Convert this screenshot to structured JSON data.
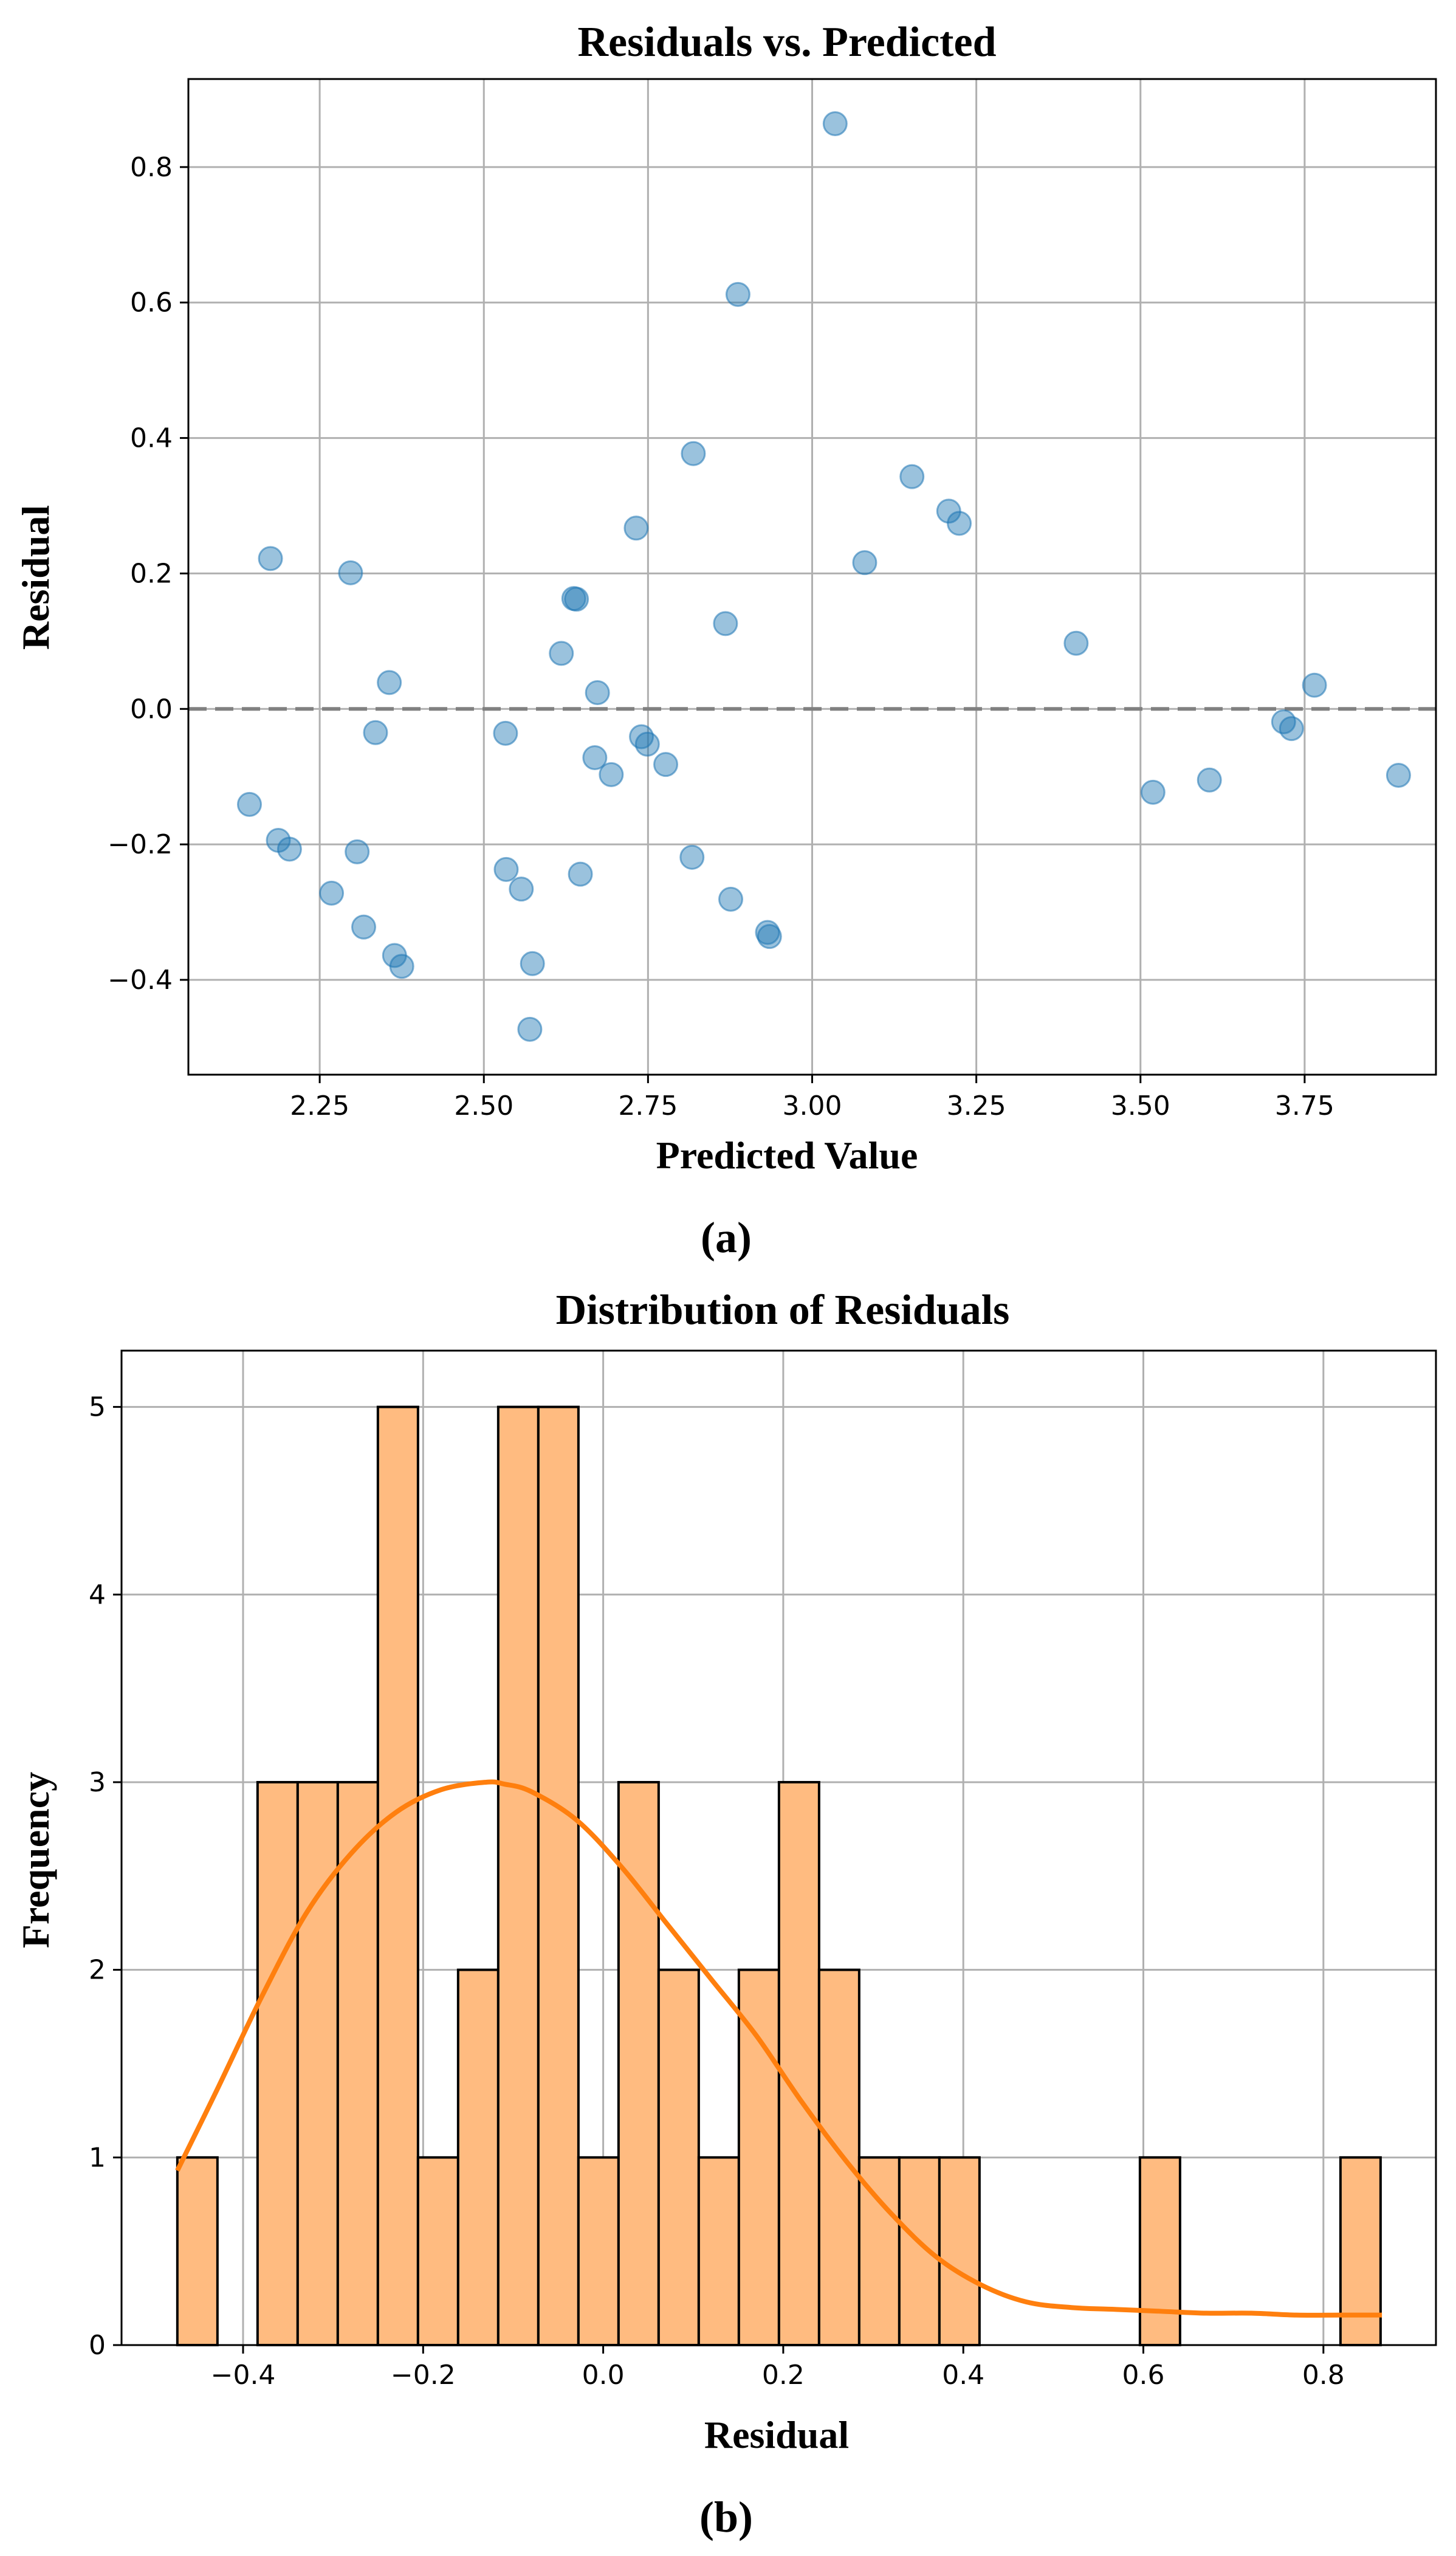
{
  "chart_data": [
    {
      "type": "scatter",
      "title": "Residuals vs. Predicted",
      "xlabel": "Predicted Value",
      "ylabel": "Residual",
      "panel_label": "(a)",
      "xlim": [
        2.05,
        3.95
      ],
      "ylim": [
        -0.54,
        0.93
      ],
      "xticks": [
        "2.25",
        "2.50",
        "2.75",
        "3.00",
        "3.25",
        "3.50",
        "3.75"
      ],
      "xtick_values": [
        2.25,
        2.5,
        2.75,
        3.0,
        3.25,
        3.5,
        3.75
      ],
      "yticks": [
        "−0.4",
        "−0.2",
        "0.0",
        "0.2",
        "0.4",
        "0.6",
        "0.8"
      ],
      "ytick_values": [
        -0.4,
        -0.2,
        0.0,
        0.2,
        0.4,
        0.6,
        0.8
      ],
      "grid": true,
      "reference_line": {
        "y": 0.0,
        "style": "dashed"
      },
      "marker_color": "#1f77b4",
      "points": [
        [
          2.143,
          -0.141
        ],
        [
          2.175,
          0.222
        ],
        [
          2.187,
          -0.194
        ],
        [
          2.204,
          -0.207
        ],
        [
          2.268,
          -0.272
        ],
        [
          2.297,
          0.201
        ],
        [
          2.307,
          -0.211
        ],
        [
          2.317,
          -0.322
        ],
        [
          2.335,
          -0.035
        ],
        [
          2.356,
          0.039
        ],
        [
          2.364,
          -0.364
        ],
        [
          2.375,
          -0.38
        ],
        [
          2.533,
          -0.036
        ],
        [
          2.534,
          -0.237
        ],
        [
          2.557,
          -0.266
        ],
        [
          2.57,
          -0.473
        ],
        [
          2.574,
          -0.376
        ],
        [
          2.618,
          0.082
        ],
        [
          2.637,
          0.163
        ],
        [
          2.641,
          0.162
        ],
        [
          2.647,
          -0.244
        ],
        [
          2.669,
          -0.072
        ],
        [
          2.673,
          0.024
        ],
        [
          2.694,
          -0.097
        ],
        [
          2.732,
          0.267
        ],
        [
          2.74,
          -0.041
        ],
        [
          2.749,
          -0.052
        ],
        [
          2.777,
          -0.082
        ],
        [
          2.817,
          -0.219
        ],
        [
          2.819,
          0.377
        ],
        [
          2.868,
          0.126
        ],
        [
          2.876,
          -0.281
        ],
        [
          2.887,
          0.612
        ],
        [
          2.932,
          -0.33
        ],
        [
          2.935,
          -0.336
        ],
        [
          3.035,
          0.864
        ],
        [
          3.08,
          0.216
        ],
        [
          3.152,
          0.343
        ],
        [
          3.208,
          0.292
        ],
        [
          3.224,
          0.274
        ],
        [
          3.402,
          0.097
        ],
        [
          3.519,
          -0.123
        ],
        [
          3.605,
          -0.105
        ],
        [
          3.718,
          -0.019
        ],
        [
          3.73,
          -0.029
        ],
        [
          3.765,
          0.035
        ],
        [
          3.893,
          -0.098
        ]
      ]
    },
    {
      "type": "bar",
      "subtype": "histogram_with_kde",
      "title": "Distribution of Residuals",
      "xlabel": "Residual",
      "ylabel": "Frequency",
      "panel_label": "(b)",
      "xlim": [
        -0.535,
        0.925
      ],
      "ylim": [
        0,
        5.3
      ],
      "xticks": [
        "−0.4",
        "−0.2",
        "0.0",
        "0.2",
        "0.4",
        "0.6",
        "0.8"
      ],
      "xtick_values": [
        -0.4,
        -0.2,
        0.0,
        0.2,
        0.4,
        0.6,
        0.8
      ],
      "yticks": [
        "0",
        "1",
        "2",
        "3",
        "4",
        "5"
      ],
      "ytick_values": [
        0,
        1,
        2,
        3,
        4,
        5
      ],
      "grid": true,
      "bar_color": "#ffbb80",
      "edge_color": "#000000",
      "kde_color": "#ff7f0e",
      "bins": {
        "start": -0.473,
        "width": 0.04455,
        "count": 30
      },
      "values": [
        1,
        0,
        3,
        3,
        3,
        5,
        1,
        2,
        5,
        5,
        1,
        3,
        2,
        1,
        2,
        3,
        2,
        1,
        1,
        1,
        0,
        0,
        0,
        0,
        1,
        0,
        0,
        0,
        0,
        1
      ],
      "kde": {
        "x": [
          -0.473,
          -0.43,
          -0.38,
          -0.33,
          -0.28,
          -0.23,
          -0.18,
          -0.13,
          -0.11,
          -0.08,
          -0.03,
          0.02,
          0.07,
          0.12,
          0.17,
          0.22,
          0.27,
          0.32,
          0.37,
          0.42,
          0.47,
          0.52,
          0.57,
          0.62,
          0.67,
          0.72,
          0.77,
          0.82,
          0.865
        ],
        "y": [
          0.93,
          1.35,
          1.85,
          2.3,
          2.62,
          2.84,
          2.96,
          3.0,
          2.99,
          2.95,
          2.8,
          2.55,
          2.25,
          1.95,
          1.65,
          1.3,
          0.98,
          0.7,
          0.47,
          0.32,
          0.23,
          0.2,
          0.19,
          0.18,
          0.17,
          0.17,
          0.16,
          0.16,
          0.16
        ]
      }
    }
  ]
}
